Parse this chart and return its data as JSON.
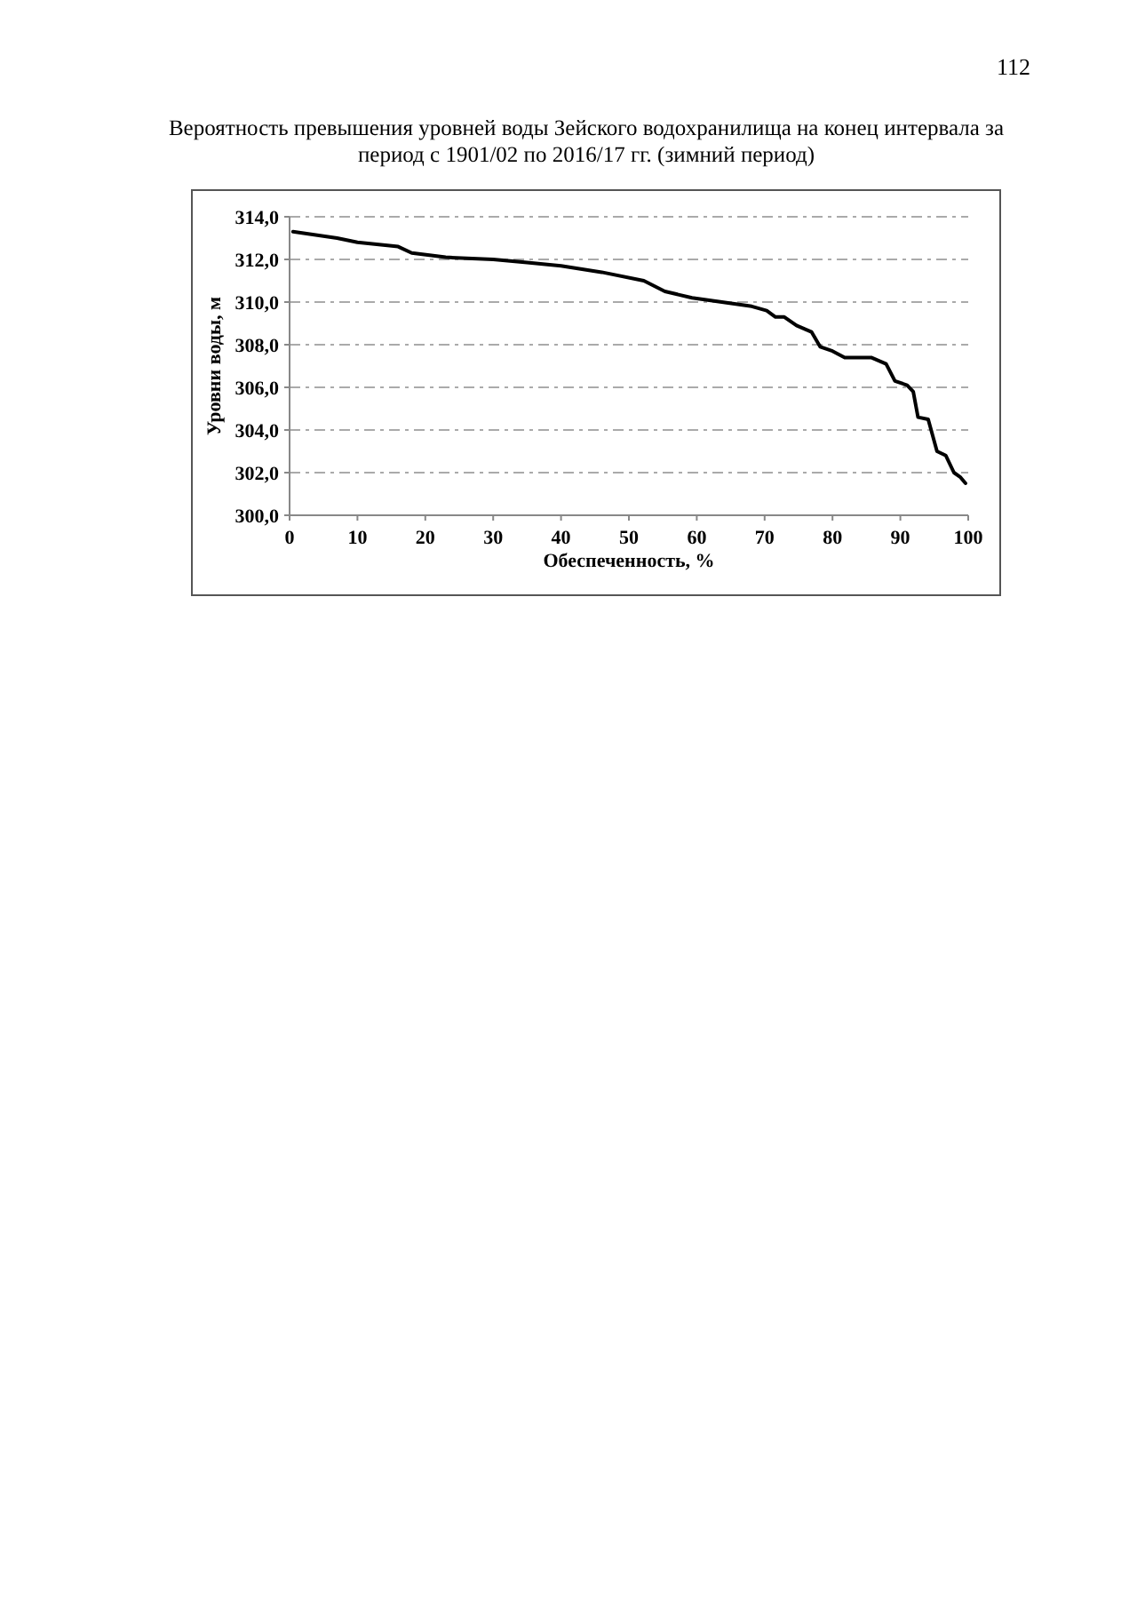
{
  "chart_data": {
    "type": "line",
    "title": "Вероятность превышения уровней воды Зейского водохранилища на конец интервала за период с 1901/02 по 2016/17 гг. (зимний период)",
    "xlabel": "Обеспеченность, %",
    "ylabel": "Уровни воды, м",
    "annotations": [
      "112"
    ],
    "x": [
      0.5,
      7,
      10,
      16,
      18,
      23,
      30,
      35,
      40,
      46,
      52.2,
      55.3,
      59.3,
      63.7,
      68.1,
      70.3,
      71.6,
      72.9,
      74.7,
      76.9,
      78.2,
      80,
      81.8,
      85.7,
      87.9,
      89.2,
      91,
      91.9,
      92.6,
      94.1,
      95.4,
      96.7,
      97.9,
      98.8,
      99.6
    ],
    "series": [
      {
        "color": "#000000",
        "values": [
          313.3,
          313.0,
          312.8,
          312.6,
          312.3,
          312.1,
          312.0,
          311.85,
          311.7,
          311.4,
          311.0,
          310.5,
          310.2,
          310.0,
          309.8,
          309.6,
          309.3,
          309.3,
          308.9,
          308.6,
          307.9,
          307.7,
          307.4,
          307.4,
          307.1,
          306.3,
          306.1,
          305.8,
          304.6,
          304.5,
          303.0,
          302.8,
          302.0,
          301.8,
          301.5
        ]
      }
    ],
    "xlim": [
      0,
      100
    ],
    "ylim": [
      300,
      314
    ],
    "xticks": [
      0,
      10,
      20,
      30,
      40,
      50,
      60,
      70,
      80,
      90,
      100
    ],
    "yticks": [
      {
        "value": 300,
        "label": "300,0"
      },
      {
        "value": 302,
        "label": "302,0"
      },
      {
        "value": 304,
        "label": "304,0"
      },
      {
        "value": 306,
        "label": "306,0"
      },
      {
        "value": 308,
        "label": "308,0"
      },
      {
        "value": 310,
        "label": "310,0"
      },
      {
        "value": 312,
        "label": "312,0"
      },
      {
        "value": 314,
        "label": "314,0"
      }
    ],
    "grid": "y",
    "marker": "none",
    "line_style": "solid"
  }
}
